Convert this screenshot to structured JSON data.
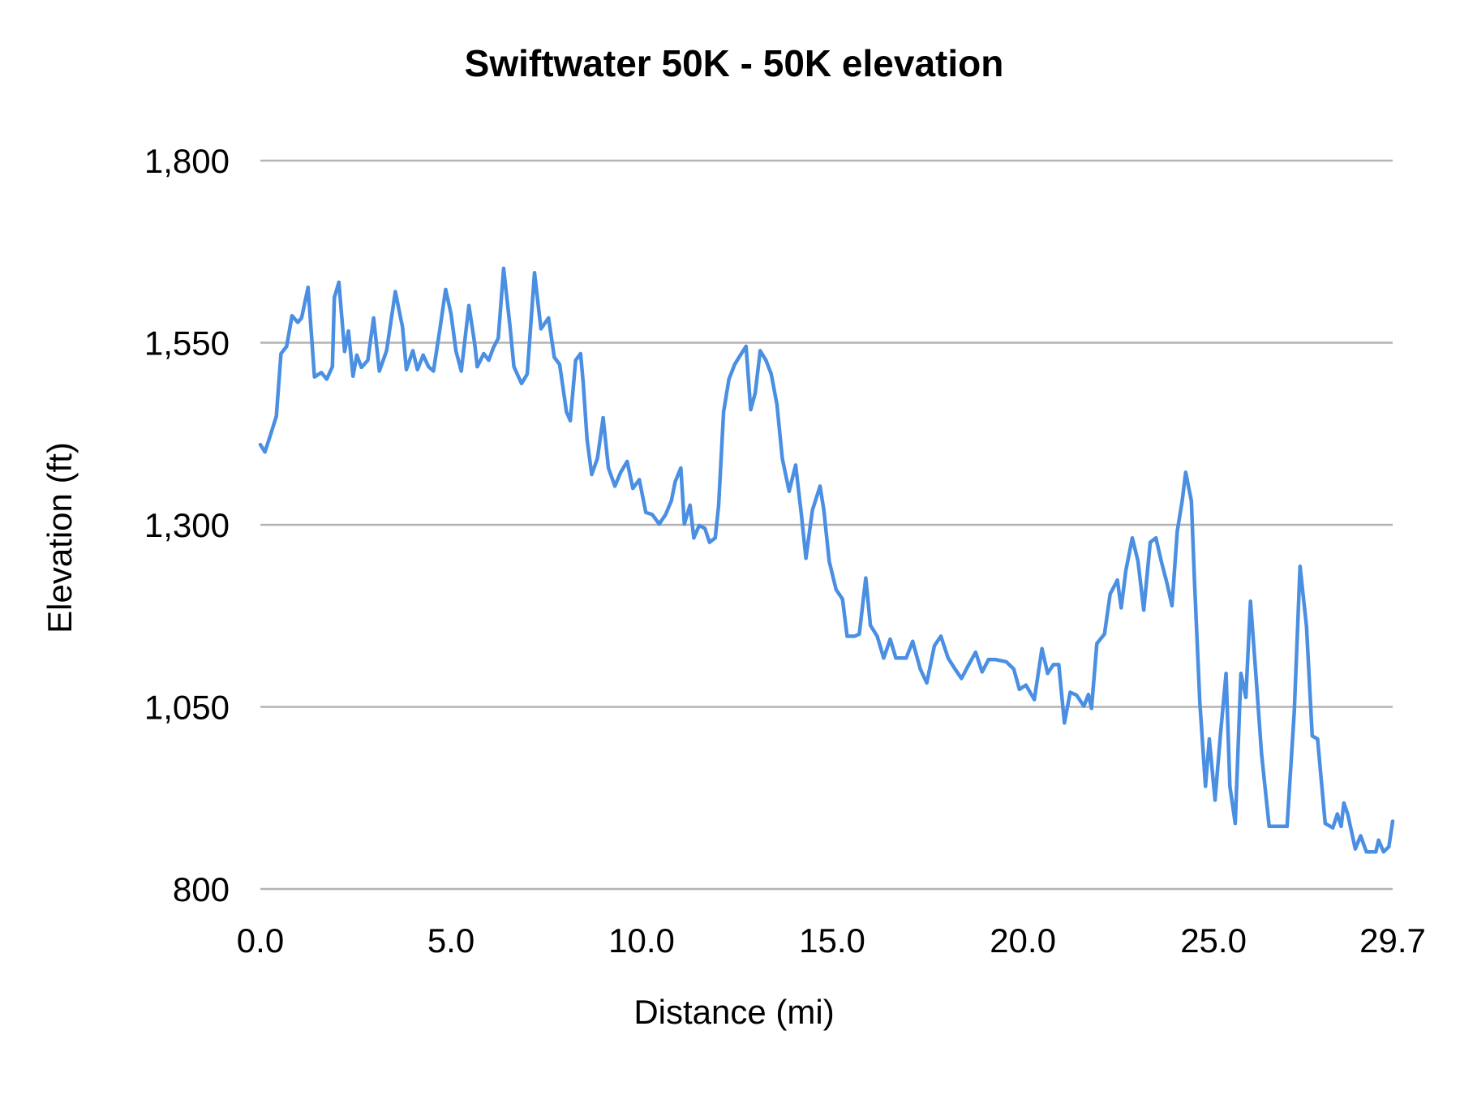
{
  "chart_data": {
    "type": "line",
    "title": "Swiftwater 50K - 50K elevation",
    "xlabel": "Distance (mi)",
    "ylabel": "Elevation (ft)",
    "xlim": [
      0,
      29.7
    ],
    "ylim": [
      800,
      1800
    ],
    "x_ticks": [
      "0.0",
      "5.0",
      "10.0",
      "15.0",
      "20.0",
      "25.0",
      "29.7"
    ],
    "x_tick_values": [
      0,
      5,
      10,
      15,
      20,
      25,
      29.7
    ],
    "y_ticks": [
      "800",
      "1,050",
      "1,300",
      "1,550",
      "1,800"
    ],
    "y_tick_values": [
      800,
      1050,
      1300,
      1550,
      1800
    ],
    "grid": "horizontal",
    "legend": "none",
    "colors": {
      "series": "#4a8fe2",
      "grid": "#b3b3b3"
    },
    "series": [
      {
        "x": [
          0.0,
          0.12,
          0.25,
          0.42,
          0.54,
          0.69,
          0.83,
          0.98,
          1.08,
          1.25,
          1.42,
          1.6,
          1.74,
          1.89,
          1.94,
          2.06,
          2.21,
          2.31,
          2.43,
          2.53,
          2.65,
          2.82,
          2.97,
          3.12,
          3.31,
          3.54,
          3.73,
          3.83,
          4.0,
          4.12,
          4.27,
          4.41,
          4.54,
          4.71,
          4.86,
          5.0,
          5.13,
          5.27,
          5.47,
          5.62,
          5.69,
          5.86,
          5.99,
          6.11,
          6.24,
          6.38,
          6.55,
          6.65,
          6.85,
          7.0,
          7.19,
          7.36,
          7.56,
          7.71,
          7.85,
          8.03,
          8.13,
          8.27,
          8.4,
          8.47,
          8.57,
          8.69,
          8.84,
          8.99,
          9.13,
          9.3,
          9.45,
          9.62,
          9.77,
          9.94,
          10.11,
          10.28,
          10.46,
          10.63,
          10.78,
          10.88,
          11.03,
          11.12,
          11.27,
          11.37,
          11.51,
          11.66,
          11.78,
          11.93,
          12.02,
          12.15,
          12.29,
          12.44,
          12.59,
          12.74,
          12.86,
          12.98,
          13.11,
          13.26,
          13.4,
          13.55,
          13.69,
          13.87,
          14.04,
          14.19,
          14.31,
          14.48,
          14.68,
          14.78,
          14.92,
          15.1,
          15.27,
          15.39,
          15.59,
          15.71,
          15.88,
          16.0,
          16.18,
          16.35,
          16.52,
          16.67,
          16.94,
          17.11,
          17.31,
          17.48,
          17.68,
          17.85,
          18.04,
          18.22,
          18.39,
          18.56,
          18.76,
          18.93,
          19.1,
          19.27,
          19.56,
          19.76,
          19.91,
          20.08,
          20.3,
          20.5,
          20.65,
          20.8,
          20.94,
          21.09,
          21.24,
          21.41,
          21.6,
          21.72,
          21.8,
          21.94,
          22.14,
          22.29,
          22.48,
          22.58,
          22.7,
          22.87,
          23.02,
          23.17,
          23.34,
          23.49,
          23.63,
          23.78,
          23.91,
          24.05,
          24.18,
          24.27,
          24.42,
          24.5,
          24.64,
          24.79,
          24.89,
          25.04,
          25.18,
          25.33,
          25.43,
          25.57,
          25.72,
          25.85,
          25.97,
          26.12,
          26.26,
          26.46,
          26.93,
          27.12,
          27.27,
          27.44,
          27.59,
          27.73,
          27.93,
          28.13,
          28.25,
          28.35,
          28.42,
          28.52,
          28.72,
          28.86,
          29.01,
          29.26,
          29.33,
          29.46,
          29.6,
          29.7
        ],
        "y": [
          1410,
          1400,
          1421,
          1449,
          1535,
          1545,
          1587,
          1578,
          1584,
          1626,
          1503,
          1509,
          1500,
          1517,
          1612,
          1633,
          1538,
          1566,
          1504,
          1533,
          1516,
          1526,
          1584,
          1511,
          1539,
          1620,
          1571,
          1513,
          1539,
          1513,
          1533,
          1517,
          1511,
          1569,
          1623,
          1590,
          1539,
          1511,
          1601,
          1549,
          1517,
          1535,
          1526,
          1543,
          1556,
          1652,
          1571,
          1517,
          1494,
          1507,
          1646,
          1569,
          1584,
          1530,
          1520,
          1455,
          1443,
          1526,
          1535,
          1494,
          1417,
          1369,
          1391,
          1447,
          1378,
          1353,
          1372,
          1387,
          1350,
          1362,
          1317,
          1314,
          1301,
          1314,
          1333,
          1359,
          1378,
          1301,
          1327,
          1282,
          1299,
          1295,
          1276,
          1282,
          1327,
          1455,
          1500,
          1520,
          1533,
          1545,
          1458,
          1481,
          1539,
          1526,
          1507,
          1465,
          1391,
          1346,
          1382,
          1314,
          1254,
          1320,
          1353,
          1320,
          1250,
          1211,
          1198,
          1147,
          1147,
          1150,
          1227,
          1162,
          1147,
          1117,
          1143,
          1117,
          1117,
          1140,
          1102,
          1083,
          1134,
          1147,
          1117,
          1102,
          1089,
          1106,
          1125,
          1098,
          1115,
          1115,
          1112,
          1102,
          1074,
          1080,
          1060,
          1130,
          1096,
          1108,
          1108,
          1028,
          1070,
          1066,
          1051,
          1067,
          1048,
          1137,
          1150,
          1205,
          1224,
          1186,
          1237,
          1282,
          1250,
          1183,
          1276,
          1282,
          1250,
          1220,
          1189,
          1291,
          1333,
          1372,
          1333,
          1224,
          1057,
          941,
          1006,
          922,
          1010,
          1096,
          941,
          890,
          1096,
          1063,
          1195,
          1089,
          986,
          886,
          886,
          1044,
          1243,
          1160,
          1010,
          1006,
          890,
          884,
          903,
          886,
          918,
          903,
          855,
          873,
          851,
          851,
          867,
          851,
          858,
          893
        ]
      }
    ]
  }
}
